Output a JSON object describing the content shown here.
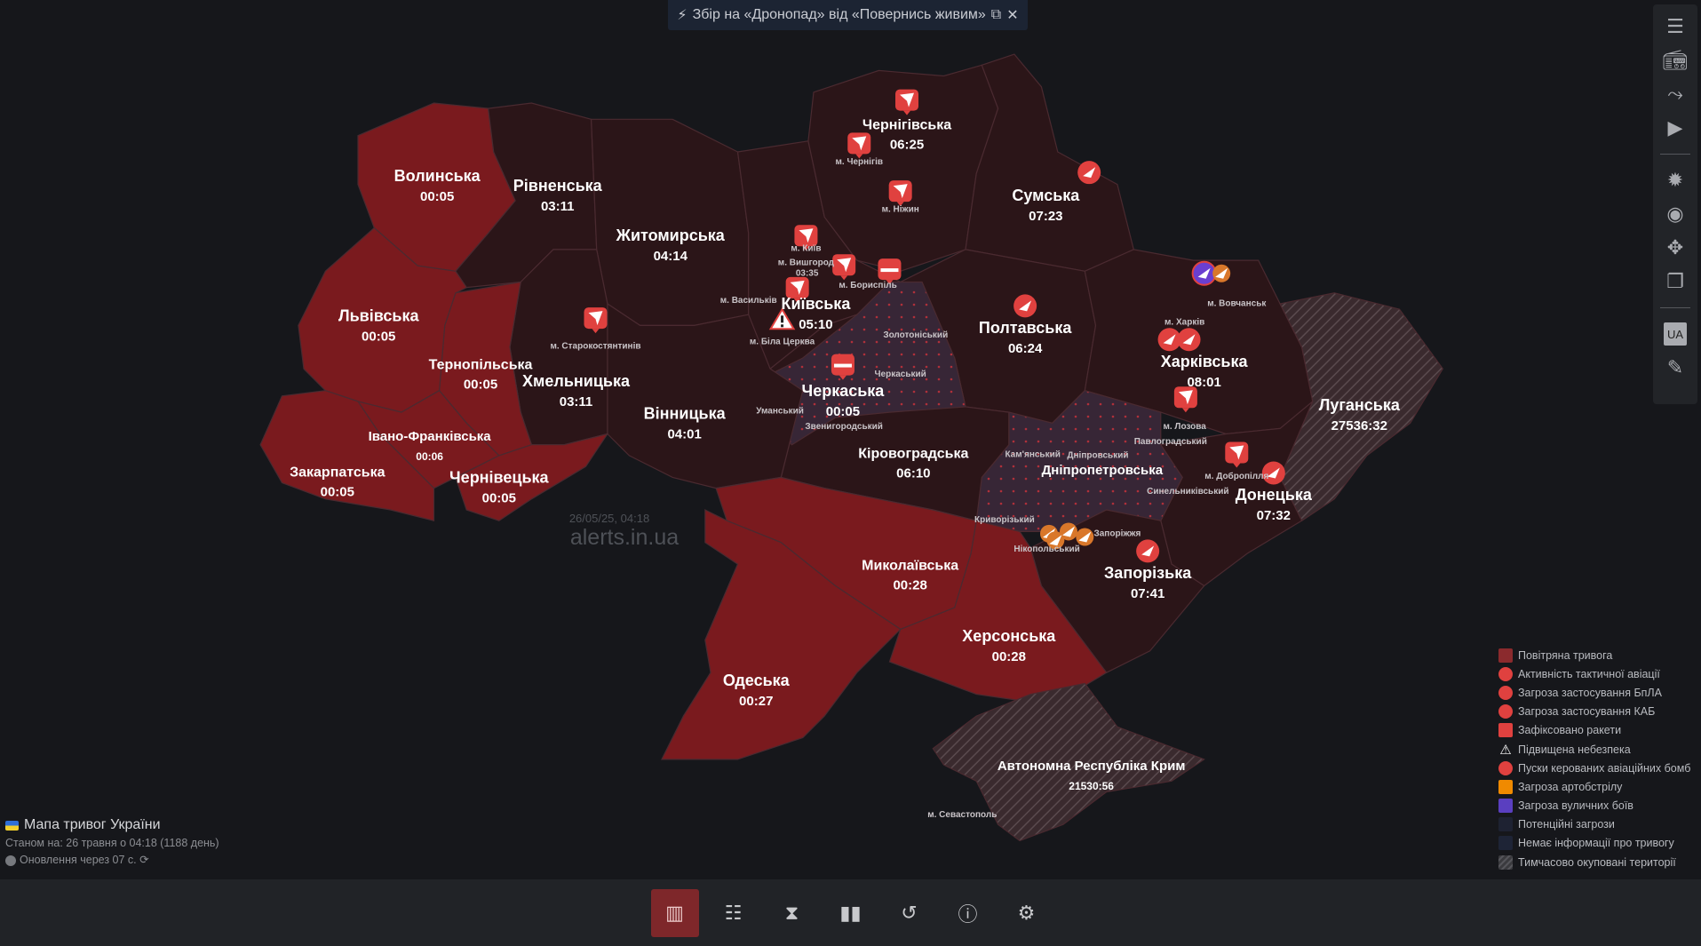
{
  "banner": {
    "text": "Збір на «Дронопад» від «Повернись живим»",
    "bolt_icon": "bolt-icon",
    "external_icon": "external-link-icon",
    "close_icon": "close-icon"
  },
  "colors": {
    "background": "#16171b",
    "air_alert": "#7a1a1e",
    "no_alert": "#2b1518",
    "potential": "#372636",
    "occupied": "#3b2a2e",
    "accent": "#e0413f",
    "artillery": "#f08a00",
    "street_fighting": "#6a3fd0"
  },
  "regions": [
    {
      "name": "Волинська",
      "timer": "00:05",
      "status": "air_alert"
    },
    {
      "name": "Рівненська",
      "timer": "03:11",
      "status": "no_alert"
    },
    {
      "name": "Житомирська",
      "timer": "04:14",
      "status": "no_alert"
    },
    {
      "name": "Київська",
      "timer": "05:10",
      "status": "no_alert"
    },
    {
      "name": "Чернігівська",
      "timer": "06:25",
      "status": "no_alert"
    },
    {
      "name": "Сумська",
      "timer": "07:23",
      "status": "no_alert"
    },
    {
      "name": "Полтавська",
      "timer": "06:24",
      "status": "no_alert"
    },
    {
      "name": "Харківська",
      "timer": "08:01",
      "status": "no_alert"
    },
    {
      "name": "Луганська",
      "timer": "27536:32",
      "status": "occupied"
    },
    {
      "name": "Донецька",
      "timer": "07:32",
      "status": "no_alert"
    },
    {
      "name": "Дніпропетровська",
      "timer": "",
      "status": "potential"
    },
    {
      "name": "Запорізька",
      "timer": "07:41",
      "status": "no_alert"
    },
    {
      "name": "Херсонська",
      "timer": "00:28",
      "status": "air_alert"
    },
    {
      "name": "Кіровоградська",
      "timer": "06:10",
      "status": "no_alert"
    },
    {
      "name": "Черкаська",
      "timer": "00:05",
      "status": "potential"
    },
    {
      "name": "Вінницька",
      "timer": "04:01",
      "status": "no_alert"
    },
    {
      "name": "Миколаївська",
      "timer": "00:28",
      "status": "air_alert"
    },
    {
      "name": "Одеська",
      "timer": "00:27",
      "status": "air_alert"
    },
    {
      "name": "Хмельницька",
      "timer": "03:11",
      "status": "no_alert"
    },
    {
      "name": "Тернопільська",
      "timer": "00:05",
      "status": "air_alert"
    },
    {
      "name": "Львівська",
      "timer": "00:05",
      "status": "air_alert"
    },
    {
      "name": "Івано-Франківська",
      "timer": "00:06",
      "status": "air_alert"
    },
    {
      "name": "Чернівецька",
      "timer": "00:05",
      "status": "air_alert"
    },
    {
      "name": "Закарпатська",
      "timer": "00:05",
      "status": "air_alert"
    },
    {
      "name": "Автономна Республіка Крим",
      "timer": "21530:56",
      "status": "occupied"
    }
  ],
  "city_labels": [
    "м. Чернігів",
    "м. Ніжин",
    "м. Вишгород",
    "м. Київ",
    "03:35",
    "м. Бориспіль",
    "м. Васильків",
    "м. Біла Церква",
    "м. Старокостянтинів",
    "Золотоніський",
    "Черкаський",
    "Уманський",
    "Звенигородський",
    "м. Вовчанськ",
    "м. Харків",
    "м. Лозова",
    "Павлоградський",
    "м. Добропілля",
    "Кам'янський",
    "Дніпровський",
    "Синельниківський",
    "Криворізький",
    "Нікопольський",
    "Запоріжжя",
    "м. Севастополь"
  ],
  "markers": [
    "drone",
    "drone",
    "drone",
    "drone",
    "drone",
    "drone",
    "drone",
    "drone",
    "drone",
    "rocket",
    "rocket",
    "aviation",
    "aviation",
    "aviation",
    "drone-circle",
    "drone-circle",
    "drone-circle",
    "warning",
    "street-fighting",
    "artillery",
    "artillery",
    "artillery",
    "artillery",
    "artillery"
  ],
  "watermark": {
    "date": "26/05/25, 04:18",
    "site": "alerts.in.ua"
  },
  "legend": [
    {
      "label": "Повітряна тривога",
      "icon": "air-alert-swatch",
      "color": "#8b2a2d"
    },
    {
      "label": "Активність тактичної авіації",
      "icon": "aviation-icon",
      "color": "#e0413f"
    },
    {
      "label": "Загроза застосування БпЛА",
      "icon": "drone-icon",
      "color": "#e0413f"
    },
    {
      "label": "Загроза застосування КАБ",
      "icon": "guided-bomb-icon",
      "color": "#e0413f"
    },
    {
      "label": "Зафіксовано ракети",
      "icon": "rocket-icon",
      "color": "#e0413f"
    },
    {
      "label": "Підвищена небезпека",
      "icon": "warning-icon",
      "color": "#ffffff"
    },
    {
      "label": "Пуски керованих авіаційних бомб",
      "icon": "bomb-launch-icon",
      "color": "#e0413f"
    },
    {
      "label": "Загроза артобстрілу",
      "icon": "artillery-swatch",
      "color": "#f08a00"
    },
    {
      "label": "Загроза вуличних боїв",
      "icon": "street-fighting-swatch",
      "color": "#5a3fc0"
    },
    {
      "label": "Потенційні загрози",
      "icon": "potential-threat-swatch",
      "color": "#1e2232"
    },
    {
      "label": "Немає інформації про тривогу",
      "icon": "no-info-swatch",
      "color": "#1e2436"
    },
    {
      "label": "Тимчасово окуповані території",
      "icon": "occupied-swatch",
      "color": "#3a3a3e"
    }
  ],
  "info": {
    "title": "Мапа тривог України",
    "status": "Станом на: 26 травня о 04:18 (1188 день)",
    "update": "Оновлення через 07 с."
  },
  "toolbar": [
    "menu-icon",
    "radio-icon",
    "route-icon",
    "youtube-icon",
    "brightness-icon",
    "camera-icon",
    "fullscreen-icon",
    "windows-icon",
    "language-ua",
    "pencil-icon"
  ],
  "toolbar_lang": "UA",
  "bottom_nav": [
    {
      "name": "map",
      "active": true
    },
    {
      "name": "list",
      "active": false
    },
    {
      "name": "timer",
      "active": false
    },
    {
      "name": "stats",
      "active": false
    },
    {
      "name": "history",
      "active": false
    },
    {
      "name": "help",
      "active": false
    },
    {
      "name": "settings",
      "active": false
    }
  ]
}
